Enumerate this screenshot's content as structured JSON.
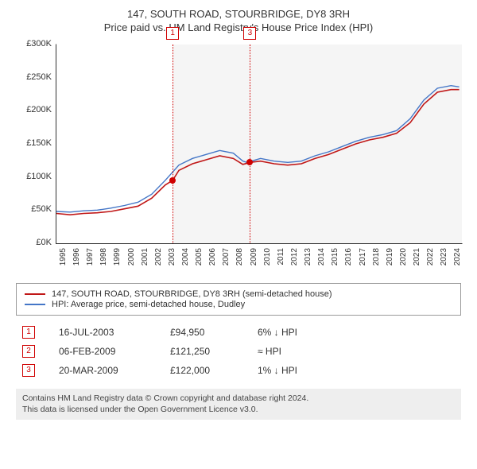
{
  "title": "147, SOUTH ROAD, STOURBRIDGE, DY8 3RH",
  "subtitle": "Price paid vs. HM Land Registry's House Price Index (HPI)",
  "chart": {
    "type": "line",
    "background_color": "#ffffff",
    "shade_color": "#e8e8e8",
    "shade_from_year": 2003.54,
    "y": {
      "min": 0,
      "max": 300000,
      "step": 50000,
      "ticks": [
        "£0K",
        "£50K",
        "£100K",
        "£150K",
        "£200K",
        "£250K",
        "£300K"
      ],
      "label_fontsize": 11
    },
    "x": {
      "min": 1995,
      "max": 2024.8,
      "ticks": [
        1995,
        1996,
        1997,
        1998,
        1999,
        2000,
        2001,
        2002,
        2003,
        2004,
        2005,
        2006,
        2007,
        2008,
        2009,
        2010,
        2011,
        2012,
        2013,
        2014,
        2015,
        2016,
        2017,
        2018,
        2019,
        2020,
        2021,
        2022,
        2023,
        2024
      ],
      "label_fontsize": 10
    },
    "series": [
      {
        "name": "property",
        "color": "#c01717",
        "width": 1.6,
        "label": "147, SOUTH ROAD, STOURBRIDGE, DY8 3RH (semi-detached house)",
        "points": [
          [
            1995,
            45000
          ],
          [
            1996,
            43000
          ],
          [
            1997,
            45000
          ],
          [
            1998,
            46000
          ],
          [
            1999,
            48000
          ],
          [
            2000,
            52000
          ],
          [
            2001,
            56000
          ],
          [
            2002,
            68000
          ],
          [
            2003,
            88000
          ],
          [
            2003.54,
            94950
          ],
          [
            2004,
            110000
          ],
          [
            2005,
            120000
          ],
          [
            2006,
            126000
          ],
          [
            2007,
            132000
          ],
          [
            2008,
            128000
          ],
          [
            2008.7,
            119000
          ],
          [
            2009.1,
            121250
          ],
          [
            2009.22,
            122000
          ],
          [
            2010,
            124000
          ],
          [
            2011,
            120000
          ],
          [
            2012,
            118000
          ],
          [
            2013,
            120000
          ],
          [
            2014,
            128000
          ],
          [
            2015,
            134000
          ],
          [
            2016,
            142000
          ],
          [
            2017,
            150000
          ],
          [
            2018,
            156000
          ],
          [
            2019,
            160000
          ],
          [
            2020,
            166000
          ],
          [
            2021,
            182000
          ],
          [
            2022,
            210000
          ],
          [
            2023,
            228000
          ],
          [
            2024,
            232000
          ],
          [
            2024.6,
            232000
          ]
        ]
      },
      {
        "name": "hpi",
        "color": "#4476c7",
        "width": 1.4,
        "label": "HPI: Average price, semi-detached house, Dudley",
        "points": [
          [
            1995,
            48000
          ],
          [
            1996,
            47000
          ],
          [
            1997,
            49000
          ],
          [
            1998,
            50000
          ],
          [
            1999,
            53000
          ],
          [
            2000,
            57000
          ],
          [
            2001,
            62000
          ],
          [
            2002,
            74000
          ],
          [
            2003,
            95000
          ],
          [
            2004,
            118000
          ],
          [
            2005,
            128000
          ],
          [
            2006,
            134000
          ],
          [
            2007,
            140000
          ],
          [
            2008,
            136000
          ],
          [
            2008.7,
            124000
          ],
          [
            2009,
            122000
          ],
          [
            2010,
            128000
          ],
          [
            2011,
            124000
          ],
          [
            2012,
            122000
          ],
          [
            2013,
            124000
          ],
          [
            2014,
            132000
          ],
          [
            2015,
            138000
          ],
          [
            2016,
            146000
          ],
          [
            2017,
            154000
          ],
          [
            2018,
            160000
          ],
          [
            2019,
            164000
          ],
          [
            2020,
            170000
          ],
          [
            2021,
            188000
          ],
          [
            2022,
            216000
          ],
          [
            2023,
            234000
          ],
          [
            2024,
            238000
          ],
          [
            2024.6,
            236000
          ]
        ]
      }
    ],
    "event_lines": [
      {
        "id": "1",
        "year": 2003.54,
        "color": "#d00000"
      },
      {
        "id": "3",
        "year": 2009.22,
        "color": "#d00000"
      }
    ],
    "event_dots": [
      {
        "year": 2003.54,
        "value": 94950,
        "color": "#d00000"
      },
      {
        "year": 2009.22,
        "value": 122000,
        "color": "#d00000"
      }
    ]
  },
  "legend": {
    "border_color": "#999999",
    "items": [
      {
        "color": "#c01717",
        "label": "147, SOUTH ROAD, STOURBRIDGE, DY8 3RH (semi-detached house)"
      },
      {
        "color": "#4476c7",
        "label": "HPI: Average price, semi-detached house, Dudley"
      }
    ]
  },
  "transactions": [
    {
      "id": "1",
      "date": "16-JUL-2003",
      "price": "£94,950",
      "delta": "6% ↓ HPI"
    },
    {
      "id": "2",
      "date": "06-FEB-2009",
      "price": "£121,250",
      "delta": "≈ HPI"
    },
    {
      "id": "3",
      "date": "20-MAR-2009",
      "price": "£122,000",
      "delta": "1% ↓ HPI"
    }
  ],
  "footer": {
    "line1": "Contains HM Land Registry data © Crown copyright and database right 2024.",
    "line2": "This data is licensed under the Open Government Licence v3.0."
  }
}
